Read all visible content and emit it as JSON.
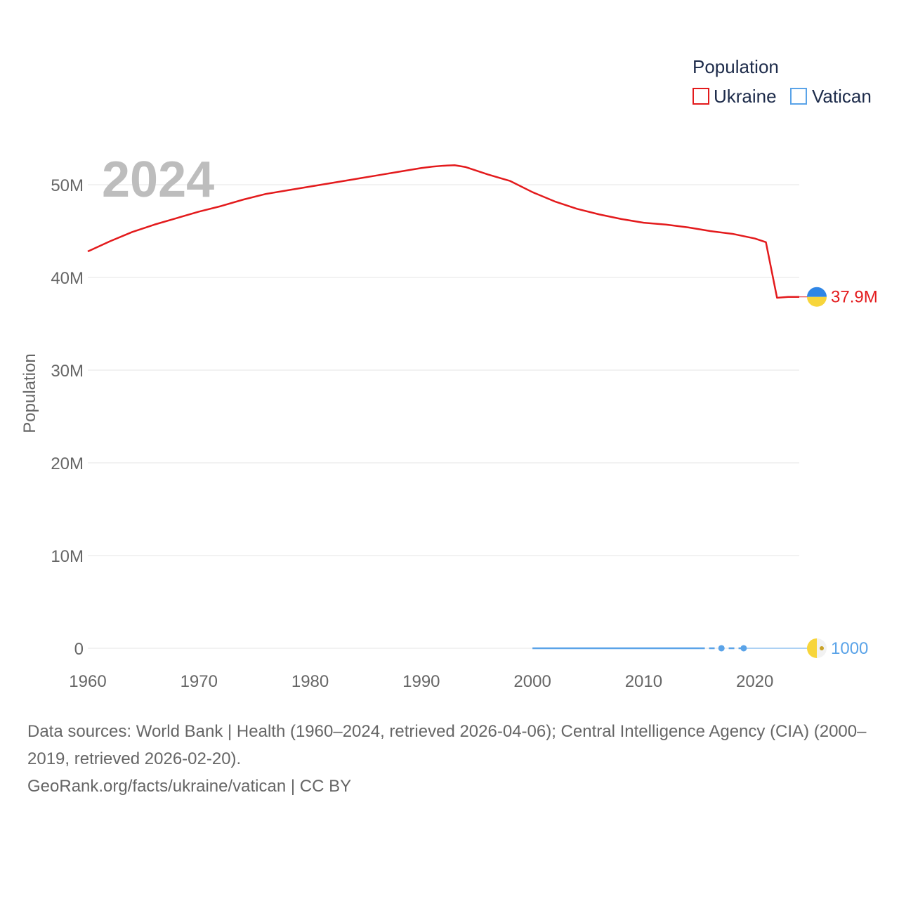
{
  "chart_data": {
    "type": "line",
    "year_label": "2024",
    "ylabel": "Population",
    "legend": {
      "title": "Population",
      "entries": [
        {
          "name": "Ukraine",
          "color": "#e31a1c"
        },
        {
          "name": "Vatican",
          "color": "#5aa3e8"
        }
      ],
      "position": "top-right"
    },
    "xlim": [
      1960,
      2024
    ],
    "ylim": [
      0,
      50000000
    ],
    "x_ticks": [
      1960,
      1970,
      1980,
      1990,
      2000,
      2010,
      2020
    ],
    "x_tick_labels": [
      "1960",
      "1970",
      "1980",
      "1990",
      "2000",
      "2010",
      "2020"
    ],
    "y_ticks": [
      0,
      10000000,
      20000000,
      30000000,
      40000000,
      50000000
    ],
    "y_tick_labels": [
      "0",
      "10M",
      "20M",
      "30M",
      "40M",
      "50M"
    ],
    "grid": true,
    "series": [
      {
        "name": "Ukraine",
        "color": "#e31a1c",
        "flag": "ukraine-flag",
        "end_label": "37.9M",
        "x": [
          1960,
          1962,
          1964,
          1966,
          1968,
          1970,
          1972,
          1974,
          1976,
          1978,
          1980,
          1982,
          1984,
          1986,
          1988,
          1990,
          1991,
          1992,
          1993,
          1994,
          1996,
          1998,
          2000,
          2002,
          2004,
          2006,
          2008,
          2010,
          2012,
          2014,
          2016,
          2018,
          2020,
          2021,
          2022,
          2023,
          2024
        ],
        "values": [
          42800000,
          43900000,
          44900000,
          45700000,
          46400000,
          47100000,
          47700000,
          48400000,
          49000000,
          49400000,
          49800000,
          50200000,
          50600000,
          51000000,
          51400000,
          51800000,
          51950000,
          52050000,
          52100000,
          51900000,
          51100000,
          50400000,
          49200000,
          48200000,
          47400000,
          46800000,
          46300000,
          45900000,
          45700000,
          45400000,
          45000000,
          44700000,
          44200000,
          43800000,
          37800000,
          37900000,
          37900000
        ]
      },
      {
        "name": "Vatican",
        "color": "#5aa3e8",
        "flag": "vatican-flag",
        "end_label": "1000",
        "x": [
          2000,
          2002,
          2004,
          2006,
          2008,
          2010,
          2012,
          2014,
          2015,
          2017,
          2019
        ],
        "values": [
          900,
          900,
          900,
          900,
          900,
          900,
          900,
          800,
          800,
          1000,
          1000
        ],
        "markers": [
          2017,
          2019
        ],
        "dashed_from": 2015
      }
    ]
  },
  "footer": {
    "line1": "Data sources: World Bank | Health (1960–2024, retrieved 2026-04-06); Central Intelligence Agency (CIA) (2000–2019, retrieved 2026-02-20).",
    "line2": "GeoRank.org/facts/ukraine/vatican | CC BY"
  }
}
